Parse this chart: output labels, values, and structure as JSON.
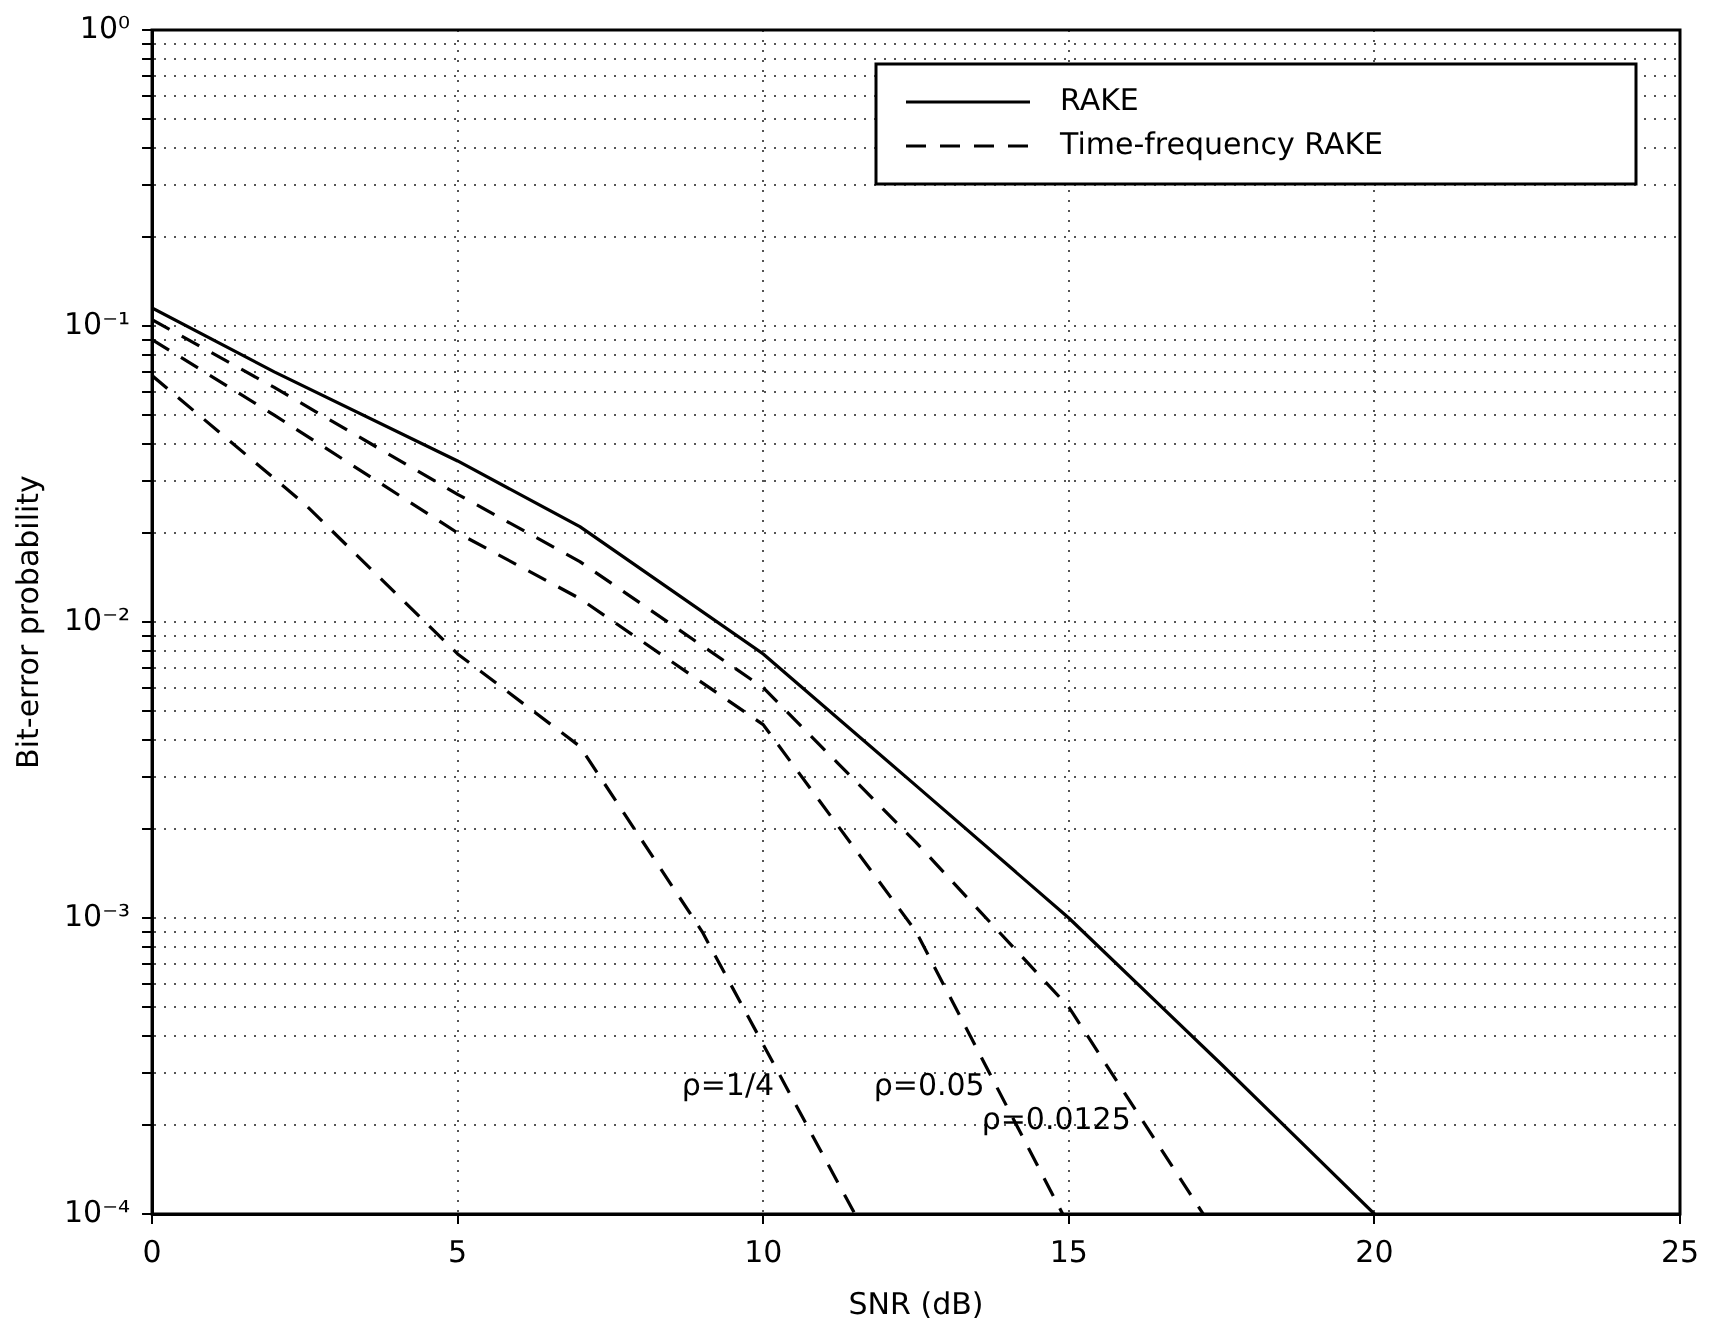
{
  "chart_data": {
    "type": "line",
    "xlabel": "SNR (dB)",
    "ylabel": "Bit-error probability",
    "log": "y",
    "grid": true,
    "legend": "top right",
    "marker": "none",
    "xlim": [
      0,
      25
    ],
    "xticks": [
      0,
      5,
      10,
      15,
      20,
      25
    ],
    "ylim": [
      0.0001,
      1
    ],
    "yticks": [
      {
        "value": 0.0001,
        "label": "10⁻⁴"
      },
      {
        "value": 0.0002,
        "label": null
      },
      {
        "value": 0.0003,
        "label": null
      },
      {
        "value": 0.0004,
        "label": null
      },
      {
        "value": 0.0005,
        "label": null
      },
      {
        "value": 0.0006,
        "label": null
      },
      {
        "value": 0.0007,
        "label": null
      },
      {
        "value": 0.0008,
        "label": null
      },
      {
        "value": 0.0009,
        "label": null
      },
      {
        "value": 0.001,
        "label": "10⁻³"
      },
      {
        "value": 0.002,
        "label": null
      },
      {
        "value": 0.003,
        "label": null
      },
      {
        "value": 0.004,
        "label": null
      },
      {
        "value": 0.005,
        "label": null
      },
      {
        "value": 0.006,
        "label": null
      },
      {
        "value": 0.007,
        "label": null
      },
      {
        "value": 0.008,
        "label": null
      },
      {
        "value": 0.009,
        "label": null
      },
      {
        "value": 0.01,
        "label": "10⁻²"
      },
      {
        "value": 0.02,
        "label": null
      },
      {
        "value": 0.03,
        "label": null
      },
      {
        "value": 0.04,
        "label": null
      },
      {
        "value": 0.05,
        "label": null
      },
      {
        "value": 0.06,
        "label": null
      },
      {
        "value": 0.07,
        "label": null
      },
      {
        "value": 0.08,
        "label": null
      },
      {
        "value": 0.09,
        "label": null
      },
      {
        "value": 0.1,
        "label": "10⁻¹"
      },
      {
        "value": 0.2,
        "label": null
      },
      {
        "value": 0.3,
        "label": null
      },
      {
        "value": 0.4,
        "label": null
      },
      {
        "value": 0.5,
        "label": null
      },
      {
        "value": 0.6,
        "label": null
      },
      {
        "value": 0.7,
        "label": null
      },
      {
        "value": 0.8,
        "label": null
      },
      {
        "value": 0.9,
        "label": null
      },
      {
        "value": 1,
        "label": "10⁰"
      }
    ],
    "series": [
      {
        "name": "RAKE",
        "color": "#000000",
        "line_style": "solid",
        "x": [
          0,
          2,
          5,
          7,
          10,
          12.5,
          15,
          17.5,
          20
        ],
        "values": [
          0.115,
          0.07,
          0.035,
          0.021,
          0.0078,
          0.0028,
          0.001,
          0.00032,
          0.0001
        ]
      },
      {
        "name": "Time-frequency RAKE",
        "color": "#000000",
        "line_style": "dashed",
        "x": [
          0,
          2,
          5,
          7,
          10,
          12.5,
          15,
          17.2
        ],
        "values": [
          0.105,
          0.062,
          0.027,
          0.016,
          0.006,
          0.0018,
          0.0005,
          0.0001
        ]
      },
      {
        "color": "#000000",
        "line_style": "dashed",
        "x": [
          0,
          2,
          5,
          7,
          10,
          12.5,
          14.9
        ],
        "values": [
          0.09,
          0.05,
          0.02,
          0.012,
          0.0045,
          0.0009,
          0.0001
        ]
      },
      {
        "color": "#000000",
        "line_style": "dashed",
        "x": [
          0,
          2.5,
          5,
          7,
          9,
          11.5
        ],
        "values": [
          0.068,
          0.025,
          0.0078,
          0.0038,
          0.0009,
          0.0001
        ]
      }
    ],
    "annotations": [
      "ρ=1/4",
      "ρ=0.05",
      "ρ=0.0125"
    ]
  }
}
